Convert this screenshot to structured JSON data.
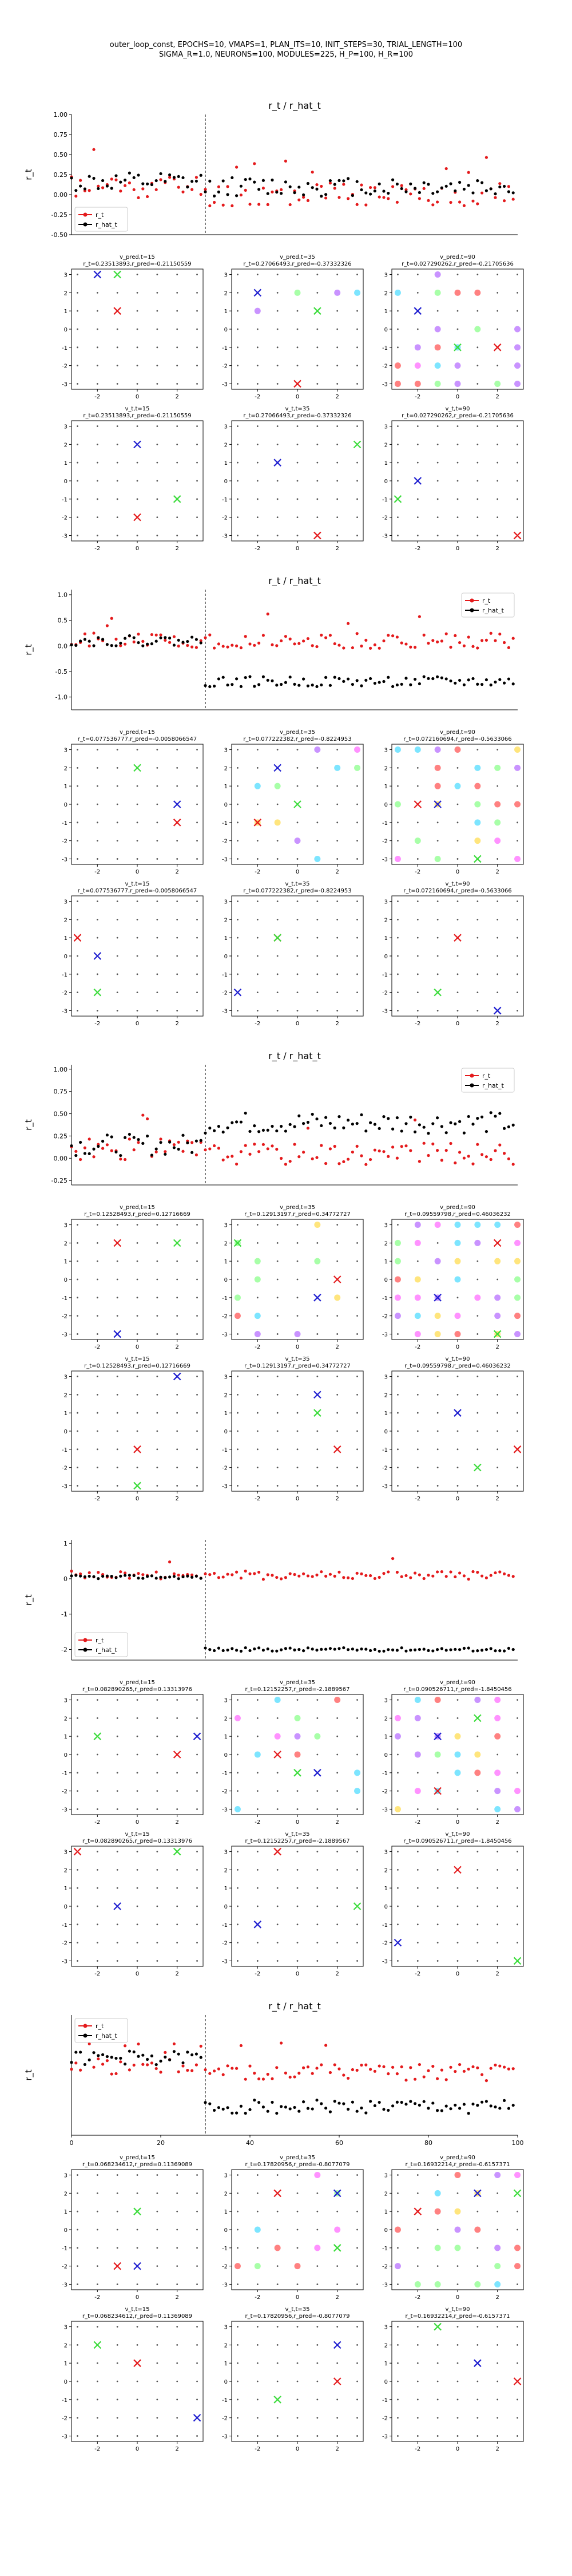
{
  "figure": {
    "suptitle_line1": "outer_loop_const, EPOCHS=10, VMAPS=1, PLAN_ITS=10, INIT_STEPS=30, TRIAL_LENGTH=100",
    "suptitle_line2": "SIGMA_R=1.0, NEURONS=100, MODULES=225, H_P=100, H_R=100"
  },
  "colors": {
    "r_t": "#e41a1c",
    "r_hat_t": "#000000",
    "grid_dot": "#555555",
    "pred_blue": "#1f1fd0",
    "pred_red": "#e41a1c",
    "pred_green": "#3cdc3c",
    "goal_colors": [
      "#ff7fff",
      "#ffe066",
      "#66e0ff",
      "#ff6b6b",
      "#c080ff",
      "#99ff99"
    ]
  },
  "icons": {
    "pred_marker": "x-mark-icon",
    "goal_marker": "circle-icon"
  },
  "chart_data": [
    {
      "type": "scatter",
      "title": "r_t / r_hat_t",
      "ylabel": "r_t",
      "xlabel": "",
      "xlim": [
        0,
        100
      ],
      "ylim": [
        -0.5,
        1.0
      ],
      "vline_x": 30,
      "legend_loc": "lower-left",
      "yticks": [
        "-0.50",
        "-0.25",
        "0.00",
        "0.25",
        "0.50",
        "0.75",
        "1.00"
      ],
      "ytick_values": [
        -0.5,
        -0.25,
        0,
        0.25,
        0.5,
        0.75,
        1.0
      ],
      "series": [
        {
          "name": "r_t",
          "base": 0.1,
          "noise": 0.15,
          "after": 0.0,
          "seed": 11
        },
        {
          "name": "r_hat_t",
          "base": 0.15,
          "noise": 0.12,
          "after": 0.1,
          "seed": 12
        }
      ],
      "grids": [
        {
          "row": "v_pred",
          "subplots": [
            {
              "title": "v_pred,t=15",
              "subtitle": "r_t=0.23513893,r_pred=-0.21150559"
            },
            {
              "title": "v_pred,t=35",
              "subtitle": "r_t=0.27066493,r_pred=-0.37332326"
            },
            {
              "title": "v_pred,t=90",
              "subtitle": "r_t=0.027290262,r_pred=-0.21705636"
            }
          ]
        },
        {
          "row": "v_t",
          "subplots": [
            {
              "title": "v_t,t=15",
              "subtitle": "r_t=0.23513893,r_pred=-0.21150559"
            },
            {
              "title": "v_t,t=35",
              "subtitle": "r_t=0.27066493,r_pred=-0.37332326"
            },
            {
              "title": "v_t,t=90",
              "subtitle": "r_t=0.027290262,r_pred=-0.21705636"
            }
          ]
        }
      ]
    },
    {
      "type": "scatter",
      "title": "r_t / r_hat_t",
      "ylabel": "r_t",
      "xlabel": "",
      "xlim": [
        0,
        100
      ],
      "ylim": [
        -1.25,
        1.1
      ],
      "vline_x": 30,
      "legend_loc": "top-right",
      "yticks": [
        "-1.0",
        "-0.5",
        "0.0",
        "0.5",
        "1.0"
      ],
      "ytick_values": [
        -1.0,
        -0.5,
        0,
        0.5,
        1.0
      ],
      "series": [
        {
          "name": "r_t",
          "base": 0.1,
          "noise": 0.15,
          "after": 0.1,
          "seed": 21
        },
        {
          "name": "r_hat_t",
          "base": 0.1,
          "noise": 0.1,
          "after": -0.7,
          "seed": 22
        }
      ],
      "grids": [
        {
          "row": "v_pred",
          "subplots": [
            {
              "title": "v_pred,t=15",
              "subtitle": "r_t=0.077536777,r_pred=-0.0058066547"
            },
            {
              "title": "v_pred,t=35",
              "subtitle": "r_t=0.077222382,r_pred=-0.8224953"
            },
            {
              "title": "v_pred,t=90",
              "subtitle": "r_t=0.072160694,r_pred=-0.5633066"
            }
          ]
        },
        {
          "row": "v_t",
          "subplots": [
            {
              "title": "v_t,t=15",
              "subtitle": "r_t=0.077536777,r_pred=-0.0058066547"
            },
            {
              "title": "v_t,t=35",
              "subtitle": "r_t=0.077222382,r_pred=-0.8224953"
            },
            {
              "title": "v_t,t=90",
              "subtitle": "r_t=0.072160694,r_pred=-0.5633066"
            }
          ]
        }
      ]
    },
    {
      "type": "scatter",
      "title": "r_t / r_hat_t",
      "ylabel": "r_t",
      "xlabel": "",
      "xlim": [
        0,
        100
      ],
      "ylim": [
        -0.3,
        1.05
      ],
      "vline_x": 30,
      "legend_loc": "top-right",
      "yticks": [
        "-0.25",
        "0.00",
        "0.25",
        "0.50",
        "0.75",
        "1.00"
      ],
      "ytick_values": [
        -0.25,
        0,
        0.25,
        0.5,
        0.75,
        1.0
      ],
      "series": [
        {
          "name": "r_t",
          "base": 0.1,
          "noise": 0.12,
          "after": 0.05,
          "seed": 31
        },
        {
          "name": "r_hat_t",
          "base": 0.15,
          "noise": 0.12,
          "after": 0.4,
          "seed": 32
        }
      ],
      "grids": [
        {
          "row": "v_pred",
          "subplots": [
            {
              "title": "v_pred,t=15",
              "subtitle": "r_t=0.12528493,r_pred=0.12716669"
            },
            {
              "title": "v_pred,t=35",
              "subtitle": "r_t=0.12913197,r_pred=0.34772727"
            },
            {
              "title": "v_pred,t=90",
              "subtitle": "r_t=0.09559798,r_pred=0.46036232"
            }
          ]
        },
        {
          "row": "v_t",
          "subplots": [
            {
              "title": "v_t,t=15",
              "subtitle": "r_t=0.12528493,r_pred=0.12716669"
            },
            {
              "title": "v_t,t=35",
              "subtitle": "r_t=0.12913197,r_pred=0.34772727"
            },
            {
              "title": "v_t,t=90",
              "subtitle": "r_t=0.09559798,r_pred=0.46036232"
            }
          ]
        }
      ]
    },
    {
      "type": "scatter",
      "title": "",
      "ylabel": "r_t",
      "xlabel": "",
      "xlim": [
        0,
        100
      ],
      "ylim": [
        -2.3,
        1.1
      ],
      "vline_x": 30,
      "legend_loc": "lower-left",
      "yticks": [
        "-2",
        "-1",
        "0",
        "1"
      ],
      "ytick_values": [
        -2,
        -1,
        0,
        1
      ],
      "series": [
        {
          "name": "r_t",
          "base": 0.1,
          "noise": 0.12,
          "after": 0.1,
          "seed": 41
        },
        {
          "name": "r_hat_t",
          "base": 0.05,
          "noise": 0.05,
          "after": -2.0,
          "seed": 42
        }
      ],
      "grids": [
        {
          "row": "v_pred",
          "subplots": [
            {
              "title": "v_pred,t=15",
              "subtitle": "r_t=0.082890265,r_pred=0.13313976"
            },
            {
              "title": "v_pred,t=35",
              "subtitle": "r_t=0.12152257,r_pred=-2.1889567"
            },
            {
              "title": "v_pred,t=90",
              "subtitle": "r_t=0.090526711,r_pred=-1.8450456"
            }
          ]
        },
        {
          "row": "v_t",
          "subplots": [
            {
              "title": "v_t,t=15",
              "subtitle": "r_t=0.082890265,r_pred=0.13313976"
            },
            {
              "title": "v_t,t=35",
              "subtitle": "r_t=0.12152257,r_pred=-2.1889567"
            },
            {
              "title": "v_t,t=90",
              "subtitle": "r_t=0.090526711,r_pred=-1.8450456"
            }
          ]
        }
      ]
    },
    {
      "type": "scatter",
      "title": "r_t / r_hat_t",
      "ylabel": "r_t",
      "xlabel": "",
      "xlim": [
        0,
        100
      ],
      "ylim": [
        -1.0,
        1.1
      ],
      "vline_x": 30,
      "legend_loc": "top-left",
      "yticks": [],
      "ytick_values": [],
      "xticks": [
        "0",
        "20",
        "40",
        "60",
        "80",
        "100"
      ],
      "xtick_values": [
        0,
        20,
        40,
        60,
        80,
        100
      ],
      "series": [
        {
          "name": "r_t",
          "base": 0.2,
          "noise": 0.15,
          "after": 0.1,
          "seed": 51
        },
        {
          "name": "r_hat_t",
          "base": 0.35,
          "noise": 0.12,
          "after": -0.5,
          "seed": 52
        }
      ],
      "grids": [
        {
          "row": "v_pred",
          "subplots": [
            {
              "title": "v_pred,t=15",
              "subtitle": "r_t=0.068234612,r_pred=0.11369089"
            },
            {
              "title": "v_pred,t=35",
              "subtitle": "r_t=0.17820956,r_pred=-0.8077079"
            },
            {
              "title": "v_pred,t=90",
              "subtitle": "r_t=0.16932214,r_pred=-0.6157371"
            }
          ]
        },
        {
          "row": "v_t",
          "subplots": [
            {
              "title": "v_t,t=15",
              "subtitle": "r_t=0.068234612,r_pred=0.11369089"
            },
            {
              "title": "v_t,t=35",
              "subtitle": "r_t=0.17820956,r_pred=-0.8077079"
            },
            {
              "title": "v_t,t=90",
              "subtitle": "r_t=0.16932214,r_pred=-0.6157371"
            }
          ]
        }
      ]
    }
  ],
  "grid_axes": {
    "xticks": [
      "-2",
      "0",
      "2"
    ],
    "yticks": [
      "-3",
      "-2",
      "-1",
      "0",
      "1",
      "2",
      "3"
    ],
    "lim": [
      -3.3,
      3.3
    ]
  }
}
